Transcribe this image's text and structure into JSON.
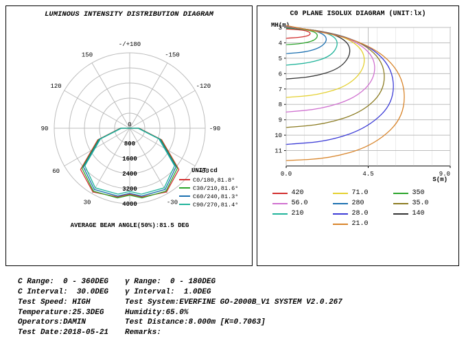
{
  "left": {
    "title": "LUMINOUS INTENSITY DISTRIBUTION DIAGRAM",
    "top_label": "-/+180",
    "unit_label": "UNIT:cd",
    "beam_text": "AVERAGE BEAM ANGLE(50%):81.5 DEG",
    "angle_ticks": [
      -180,
      -150,
      -120,
      -90,
      -60,
      -30,
      0,
      30,
      60,
      90,
      120,
      150
    ],
    "radial_ticks": [
      "800",
      "1600",
      "2400",
      "3200",
      "4000"
    ],
    "cline_legend": [
      {
        "label": "C0/180,81.8°",
        "color": "#d22d2d"
      },
      {
        "label": "C30/210,81.6°",
        "color": "#2aa52a"
      },
      {
        "label": "C60/240,81.3°",
        "color": "#1a6fb0"
      },
      {
        "label": "C90/270,81.4°",
        "color": "#1fb39a"
      }
    ],
    "axis_color": "#bdbdbd",
    "label_fontsize": 9
  },
  "right": {
    "title": "C0 PLANE ISOLUX DIAGRAM (UNIT:lx)",
    "y_label": "MH(m)",
    "x_label": "S(m)",
    "y_ticks": [
      3,
      4,
      5,
      6,
      7,
      8,
      9,
      10,
      11
    ],
    "x_ticks": [
      "0.0",
      "4.5",
      "9.0"
    ],
    "grid_color": "#bdbdbd",
    "legend": [
      {
        "label": "420",
        "color": "#d22d2d"
      },
      {
        "label": "71.0",
        "color": "#e4d02e"
      },
      {
        "label": "350",
        "color": "#2aa52a"
      },
      {
        "label": "56.0",
        "color": "#cf6fcf"
      },
      {
        "label": "280",
        "color": "#1a6fb0"
      },
      {
        "label": "35.0",
        "color": "#8a7a1f"
      },
      {
        "label": "210",
        "color": "#1fb39a"
      },
      {
        "label": "28.0",
        "color": "#3b3bd6"
      },
      {
        "label": "140",
        "color": "#333333"
      },
      {
        "label": "21.0",
        "color": "#d8842a"
      }
    ],
    "curves": [
      {
        "color": "#d22d2d",
        "pts": [
          [
            0,
            3.1
          ],
          [
            0.8,
            3.15
          ],
          [
            1.2,
            3.25
          ],
          [
            1.35,
            3.4
          ],
          [
            1.2,
            3.55
          ],
          [
            0.7,
            3.65
          ],
          [
            0,
            3.7
          ]
        ]
      },
      {
        "color": "#2aa52a",
        "pts": [
          [
            0,
            3.05
          ],
          [
            1.0,
            3.12
          ],
          [
            1.6,
            3.3
          ],
          [
            1.75,
            3.55
          ],
          [
            1.55,
            3.85
          ],
          [
            0.9,
            4.05
          ],
          [
            0,
            4.12
          ]
        ]
      },
      {
        "color": "#1a6fb0",
        "pts": [
          [
            0,
            3.02
          ],
          [
            1.4,
            3.15
          ],
          [
            2.1,
            3.45
          ],
          [
            2.25,
            3.85
          ],
          [
            1.9,
            4.3
          ],
          [
            1.1,
            4.6
          ],
          [
            0,
            4.7
          ]
        ]
      },
      {
        "color": "#1fb39a",
        "pts": [
          [
            0,
            3.0
          ],
          [
            1.8,
            3.2
          ],
          [
            2.7,
            3.6
          ],
          [
            2.85,
            4.2
          ],
          [
            2.4,
            4.9
          ],
          [
            1.3,
            5.3
          ],
          [
            0,
            5.45
          ]
        ]
      },
      {
        "color": "#333333",
        "pts": [
          [
            0,
            2.98
          ],
          [
            2.2,
            3.25
          ],
          [
            3.4,
            3.9
          ],
          [
            3.55,
            4.8
          ],
          [
            2.9,
            5.7
          ],
          [
            1.5,
            6.2
          ],
          [
            0,
            6.35
          ]
        ]
      },
      {
        "color": "#e4d02e",
        "pts": [
          [
            0,
            2.96
          ],
          [
            2.7,
            3.35
          ],
          [
            4.2,
            4.3
          ],
          [
            4.35,
            5.6
          ],
          [
            3.4,
            6.8
          ],
          [
            1.7,
            7.4
          ],
          [
            0,
            7.55
          ]
        ]
      },
      {
        "color": "#cf6fcf",
        "pts": [
          [
            0,
            2.94
          ],
          [
            3.1,
            3.45
          ],
          [
            4.8,
            4.7
          ],
          [
            4.9,
            6.3
          ],
          [
            3.8,
            7.6
          ],
          [
            1.9,
            8.3
          ],
          [
            0,
            8.5
          ]
        ]
      },
      {
        "color": "#8a7a1f",
        "pts": [
          [
            0,
            2.92
          ],
          [
            3.5,
            3.55
          ],
          [
            5.3,
            5.0
          ],
          [
            5.45,
            7.0
          ],
          [
            4.2,
            8.5
          ],
          [
            2.1,
            9.3
          ],
          [
            0,
            9.5
          ]
        ]
      },
      {
        "color": "#3b3bd6",
        "pts": [
          [
            0,
            2.9
          ],
          [
            3.9,
            3.7
          ],
          [
            5.8,
            5.4
          ],
          [
            5.95,
            7.8
          ],
          [
            4.5,
            9.5
          ],
          [
            2.3,
            10.4
          ],
          [
            0,
            10.6
          ]
        ]
      },
      {
        "color": "#d8842a",
        "pts": [
          [
            0,
            2.88
          ],
          [
            4.3,
            3.85
          ],
          [
            6.4,
            5.9
          ],
          [
            6.55,
            8.7
          ],
          [
            4.9,
            10.6
          ],
          [
            2.5,
            11.5
          ],
          [
            0,
            11.65
          ]
        ]
      }
    ]
  },
  "footer": {
    "left": "C Range:  0 - 360DEG\nC Interval:  30.0DEG\nTest Speed: HIGH\nTemperature:25.3DEG\nOperators:DAMIN\nTest Date:2018-05-21",
    "right": "γ Range:  0 - 180DEG\nγ Interval:  1.0DEG\nTest System:EVERFINE GO-2000B_V1 SYSTEM V2.0.267\nHumidity:65.0%\nTest Distance:8.000m [K=0.7063]\nRemarks:"
  }
}
